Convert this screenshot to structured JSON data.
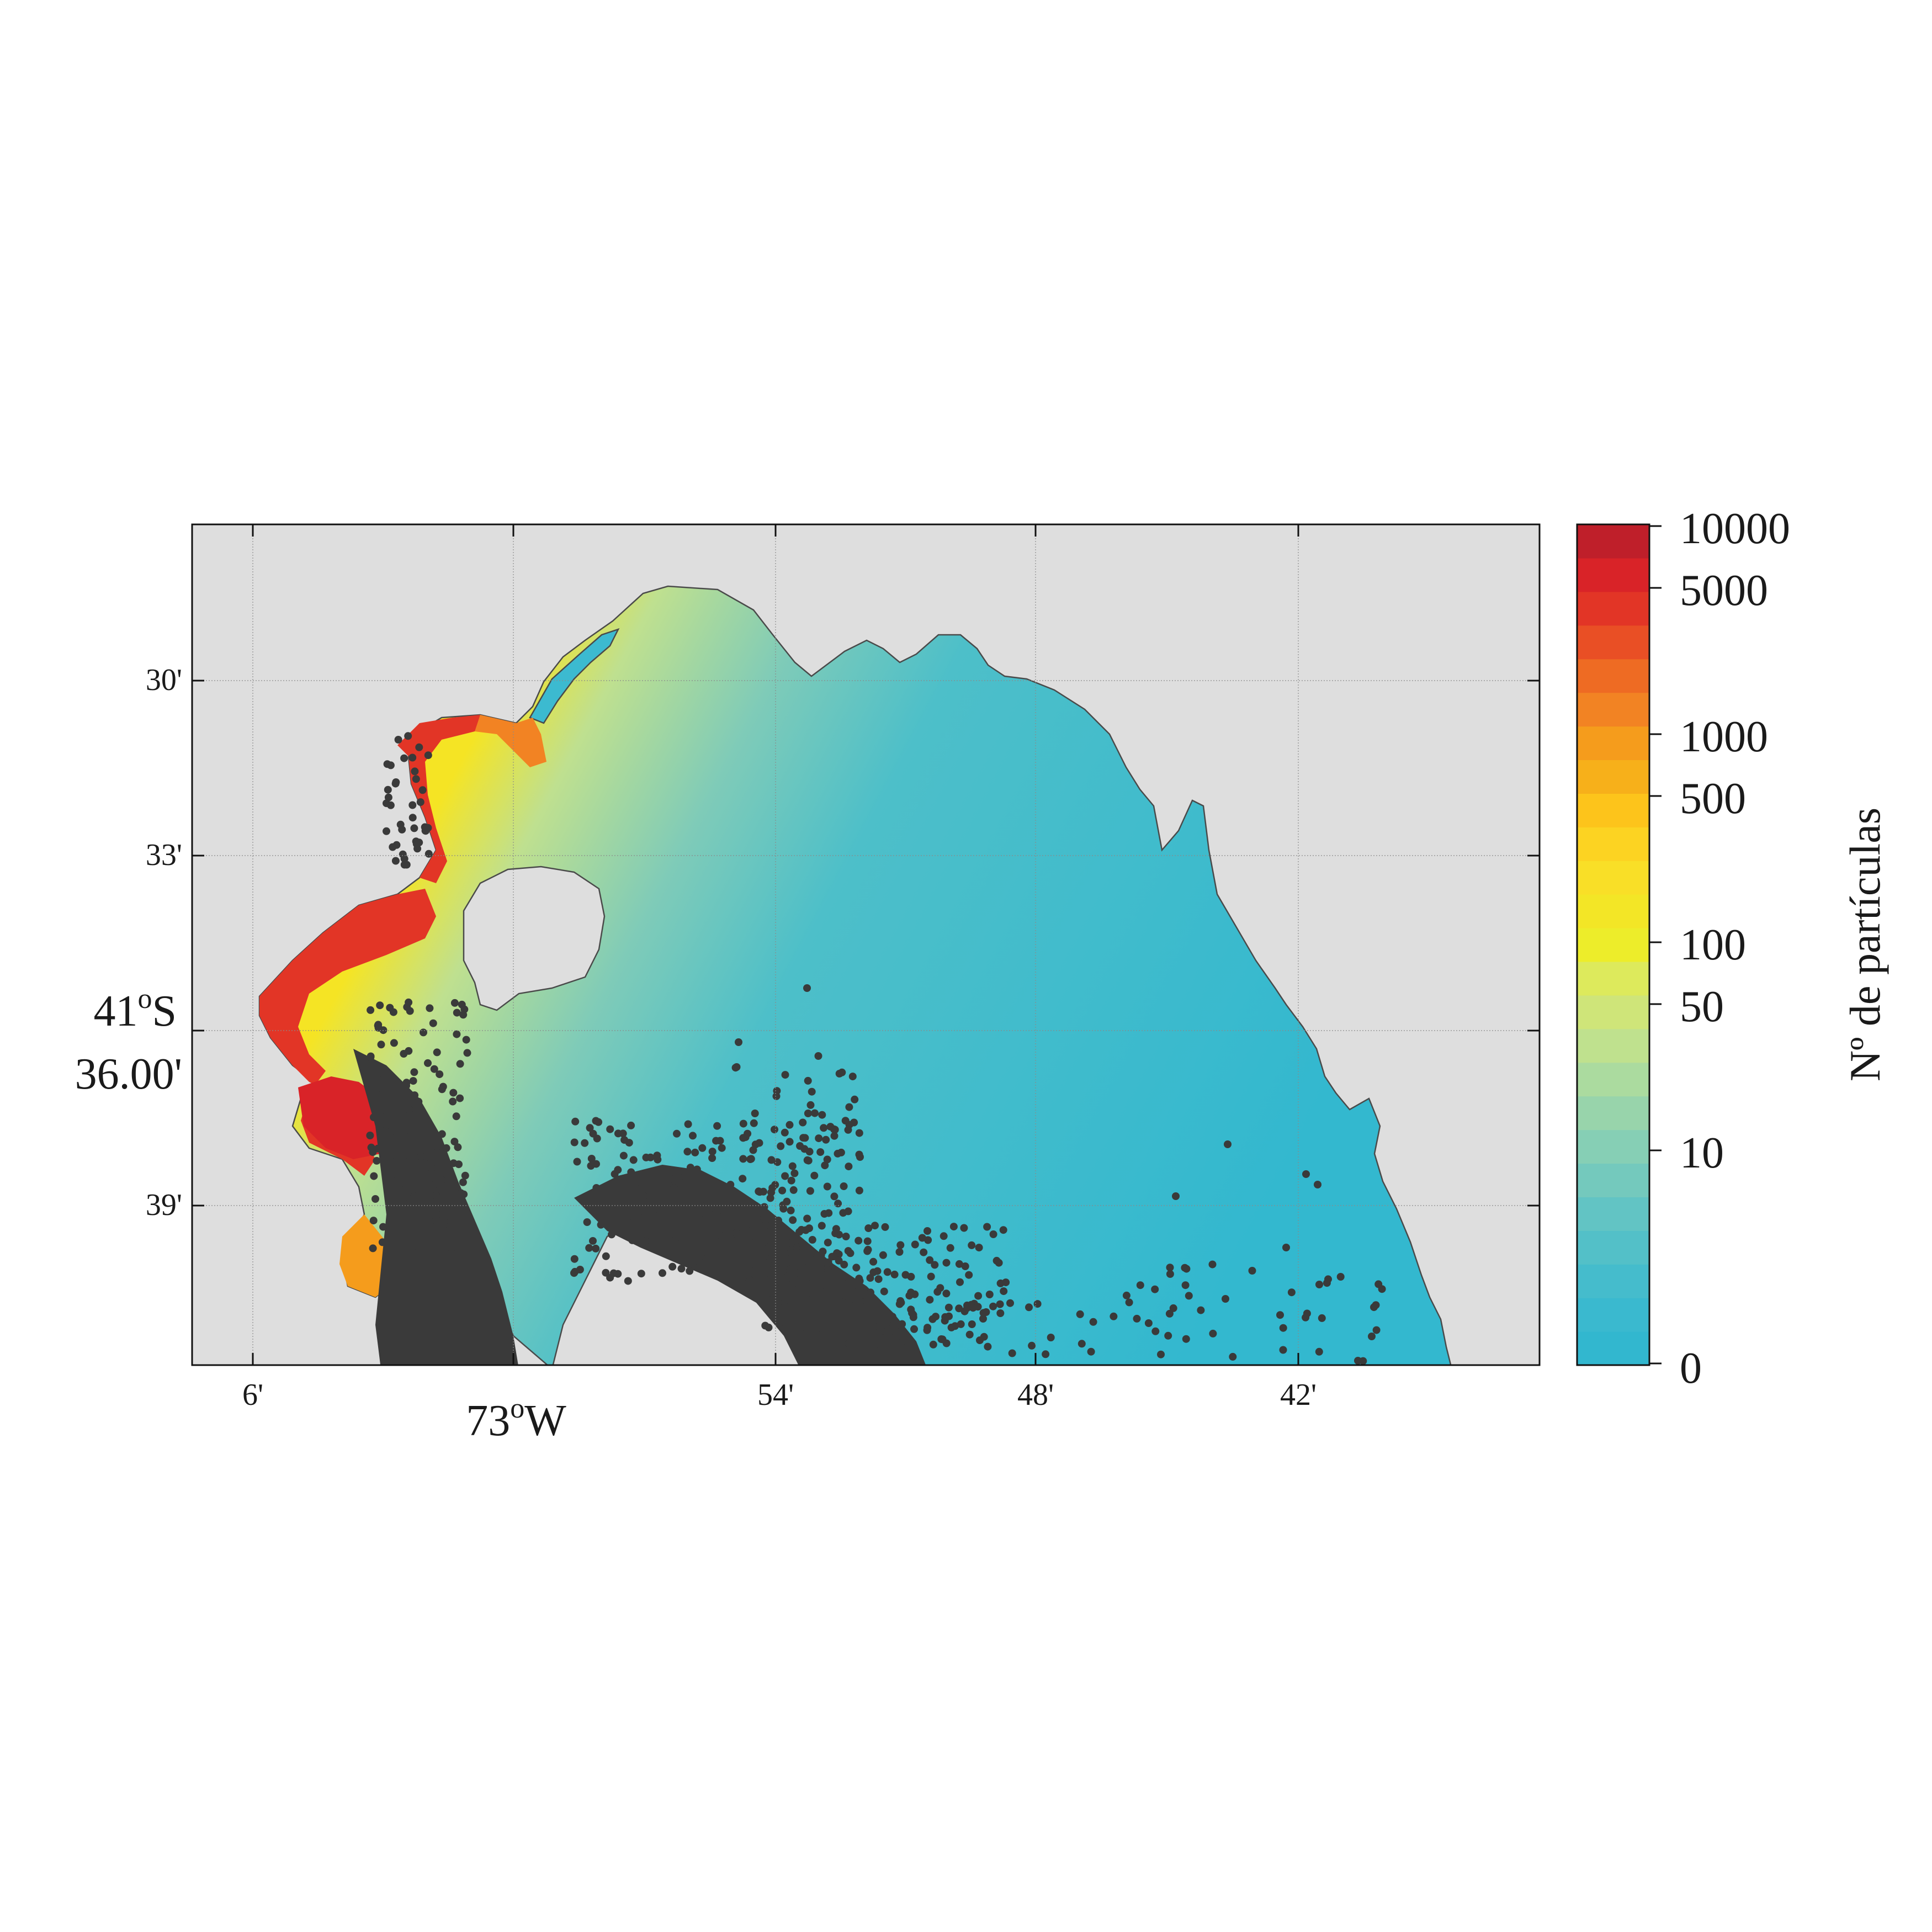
{
  "map": {
    "x_ticks": [
      {
        "label": "6'"
      },
      {
        "label": "54'"
      },
      {
        "label": "48'"
      },
      {
        "label": "42'"
      }
    ],
    "x_major_label": "73",
    "x_major_sup": "o",
    "x_major_suffix": "W",
    "y_ticks": [
      {
        "label": "30'"
      },
      {
        "label": "33'"
      },
      {
        "label": "39'"
      }
    ],
    "y_major_label_line1": "41",
    "y_major_sup": "o",
    "y_major_suffix": "S",
    "y_major_label_line2": "36.00'",
    "grid": true,
    "land_color": "#dedede",
    "coastline_color": "#4a4a4a",
    "point_color": "#3a3a3a"
  },
  "colorbar": {
    "title": "Nº de partículas",
    "tick_labels": [
      "10000",
      "5000",
      "1000",
      "500",
      "100",
      "50",
      "10",
      "0"
    ],
    "colors": [
      "#32b7cf",
      "#3ab9cf",
      "#45bccc",
      "#53c0c8",
      "#62c4c4",
      "#74c9bd",
      "#86cfb5",
      "#98d4ab",
      "#abdb9f",
      "#bfe18e",
      "#cfe579",
      "#ddea5c",
      "#eded2a",
      "#f3e626",
      "#f9df27",
      "#fcd322",
      "#fdc41b",
      "#f7b01a",
      "#f59c1c",
      "#f28323",
      "#ee6b23",
      "#e94f25",
      "#e23526",
      "#d92328",
      "#bf1f2a"
    ]
  }
}
